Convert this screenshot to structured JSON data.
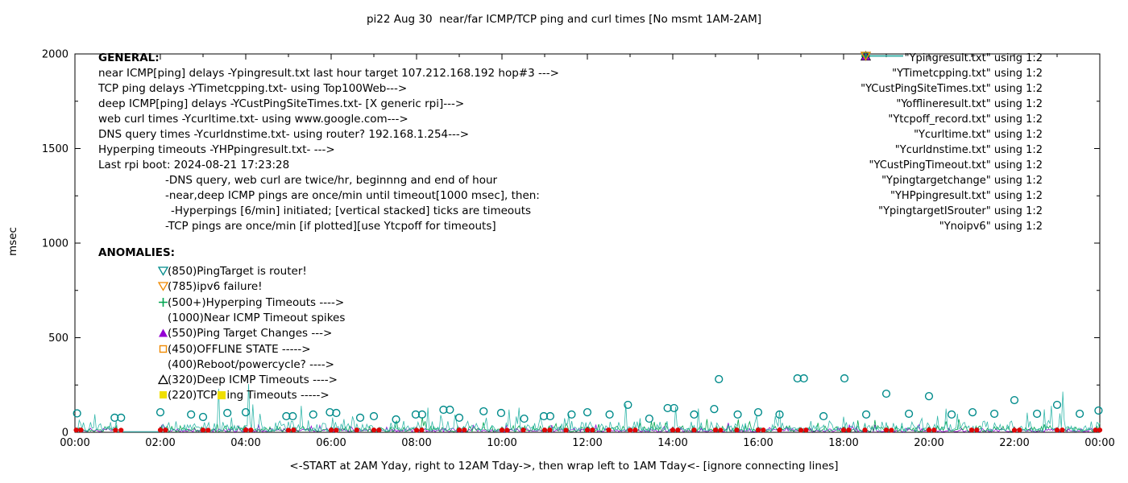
{
  "colors": {
    "purple": "#9400d3",
    "green": "#00a550",
    "lightteal": "#35b8ab",
    "teal": "#008b8b",
    "orange": "#ef8900",
    "yellow": "#efdf00",
    "red": "#dd0606",
    "black": "#000000"
  },
  "chart_data": {
    "type": "line+scatter",
    "title": "pi22 Aug 30  near/far ICMP/TCP ping and curl times [No msmt 1AM-2AM]",
    "xlabel": "<-START at 2AM Yday, right to 12AM Tday->, then wrap left to 1AM Tday<- [ignore connecting lines]",
    "ylabel": "msec",
    "ylim": [
      0,
      2000
    ],
    "xlim_hours": [
      0,
      24
    ],
    "yticks": [
      0,
      500,
      1000,
      1500,
      2000
    ],
    "xticks": [
      "00:00",
      "02:00",
      "04:00",
      "06:00",
      "08:00",
      "10:00",
      "12:00",
      "14:00",
      "16:00",
      "18:00",
      "20:00",
      "22:00",
      "00:00"
    ],
    "grid": false,
    "legend_position": "top-right",
    "no_measurement_window": {
      "start_hour": 1,
      "end_hour": 2,
      "note": "No msmt 1AM-2AM"
    },
    "line_series": [
      {
        "name": "Ypingresult.txt (near ICMP ping delays)",
        "color": "purple",
        "baseline_msec": [
          2,
          22
        ],
        "seed": 7,
        "spikes": []
      },
      {
        "name": "YTimetcpping.txt (TCP ping delays)",
        "color": "green",
        "baseline_msec": [
          3,
          35
        ],
        "seed": 13,
        "spikes": []
      },
      {
        "name": "YCustPingSiteTimes.txt (deep ICMP ping delays)",
        "color": "lightteal",
        "baseline_msec": [
          3,
          60
        ],
        "seed": 29,
        "spikes": [
          [
            3.35,
            230
          ],
          [
            4.08,
            255
          ],
          [
            5.3,
            140
          ],
          [
            8.25,
            130
          ],
          [
            10.15,
            120
          ],
          [
            12.9,
            150
          ],
          [
            14.05,
            135
          ],
          [
            20.4,
            125
          ],
          [
            22.85,
            140
          ],
          [
            23.12,
            215
          ]
        ]
      }
    ],
    "scatter_series": [
      {
        "name": "Ycurltime.txt (web curl times)",
        "marker": "circle-open",
        "color": "teal",
        "points": [
          [
            0.05,
            100
          ],
          [
            0.93,
            77
          ],
          [
            1.08,
            77
          ],
          [
            2.0,
            106
          ],
          [
            2.72,
            94
          ],
          [
            3.0,
            81
          ],
          [
            3.57,
            102
          ],
          [
            4.0,
            106
          ],
          [
            4.95,
            85
          ],
          [
            5.1,
            85
          ],
          [
            5.58,
            94
          ],
          [
            5.97,
            106
          ],
          [
            6.12,
            102
          ],
          [
            6.68,
            77
          ],
          [
            7.0,
            85
          ],
          [
            7.52,
            68
          ],
          [
            7.98,
            94
          ],
          [
            8.13,
            94
          ],
          [
            8.63,
            119
          ],
          [
            8.78,
            119
          ],
          [
            9.0,
            77
          ],
          [
            9.57,
            111
          ],
          [
            9.98,
            102
          ],
          [
            10.52,
            72
          ],
          [
            10.98,
            85
          ],
          [
            11.13,
            85
          ],
          [
            11.63,
            94
          ],
          [
            12.0,
            106
          ],
          [
            12.52,
            94
          ],
          [
            12.95,
            145
          ],
          [
            13.45,
            72
          ],
          [
            13.88,
            128
          ],
          [
            14.03,
            128
          ],
          [
            14.5,
            94
          ],
          [
            14.97,
            123
          ],
          [
            15.08,
            281
          ],
          [
            15.52,
            94
          ],
          [
            16.0,
            106
          ],
          [
            16.5,
            94
          ],
          [
            16.92,
            285
          ],
          [
            17.07,
            285
          ],
          [
            17.53,
            85
          ],
          [
            18.02,
            285
          ],
          [
            18.53,
            94
          ],
          [
            19.0,
            204
          ],
          [
            19.53,
            98
          ],
          [
            20.0,
            191
          ],
          [
            20.53,
            94
          ],
          [
            21.02,
            106
          ],
          [
            21.53,
            98
          ],
          [
            22.0,
            170
          ],
          [
            22.53,
            98
          ],
          [
            23.0,
            145
          ],
          [
            23.53,
            98
          ],
          [
            23.97,
            115
          ]
        ]
      },
      {
        "name": "Ycurldnstime.txt (DNS query times)",
        "marker": "circle-filled",
        "color": "red",
        "points": [
          [
            0.03,
            12
          ],
          [
            0.14,
            12
          ],
          [
            0.95,
            11
          ],
          [
            1.08,
            11
          ],
          [
            2.0,
            12
          ],
          [
            2.12,
            12
          ],
          [
            3.0,
            12
          ],
          [
            3.12,
            11
          ],
          [
            4.0,
            12
          ],
          [
            4.12,
            12
          ],
          [
            5.0,
            11
          ],
          [
            5.12,
            12
          ],
          [
            6.0,
            12
          ],
          [
            6.12,
            11
          ],
          [
            6.6,
            12
          ],
          [
            7.0,
            12
          ],
          [
            7.12,
            12
          ],
          [
            8.0,
            11
          ],
          [
            8.12,
            12
          ],
          [
            9.0,
            12
          ],
          [
            9.12,
            12
          ],
          [
            10.0,
            12
          ],
          [
            10.12,
            11
          ],
          [
            10.5,
            12
          ],
          [
            11.0,
            12
          ],
          [
            11.12,
            12
          ],
          [
            11.5,
            11
          ],
          [
            12.0,
            12
          ],
          [
            12.12,
            12
          ],
          [
            12.5,
            12
          ],
          [
            13.0,
            11
          ],
          [
            13.12,
            12
          ],
          [
            14.0,
            12
          ],
          [
            14.12,
            12
          ],
          [
            14.5,
            12
          ],
          [
            15.0,
            12
          ],
          [
            15.12,
            11
          ],
          [
            15.5,
            12
          ],
          [
            16.0,
            12
          ],
          [
            16.12,
            12
          ],
          [
            16.5,
            12
          ],
          [
            17.0,
            11
          ],
          [
            17.12,
            12
          ],
          [
            18.0,
            12
          ],
          [
            18.12,
            12
          ],
          [
            18.5,
            12
          ],
          [
            19.0,
            12
          ],
          [
            19.12,
            11
          ],
          [
            20.0,
            12
          ],
          [
            20.12,
            12
          ],
          [
            21.0,
            12
          ],
          [
            21.12,
            12
          ],
          [
            22.0,
            11
          ],
          [
            22.12,
            12
          ],
          [
            23.0,
            12
          ],
          [
            23.12,
            12
          ],
          [
            23.9,
            12
          ],
          [
            24.0,
            12
          ]
        ]
      }
    ]
  },
  "legend": [
    {
      "label": "\"Ypingresult.txt\" using 1:2",
      "marker": "line",
      "color": "purple"
    },
    {
      "label": "\"YTimetcpping.txt\" using 1:2",
      "marker": "line",
      "color": "green"
    },
    {
      "label": "\"YCustPingSiteTimes.txt\" using 1:2",
      "marker": "line",
      "color": "lightteal"
    },
    {
      "label": "\"Yofflineresult.txt\" using 1:2",
      "marker": "square-open",
      "color": "orange"
    },
    {
      "label": "\"Ytcpoff_record.txt\" using 1:2",
      "marker": "square-filled",
      "color": "yellow"
    },
    {
      "label": "\"Ycurltime.txt\" using 1:2",
      "marker": "circle-open",
      "color": "teal"
    },
    {
      "label": "\"Ycurldnstime.txt\" using 1:2",
      "marker": "circle-filled",
      "color": "red"
    },
    {
      "label": "\"YCustPingTimeout.txt\" using 1:2",
      "marker": "tri-up-open",
      "color": "black"
    },
    {
      "label": "\"Ypingtargetchange\" using 1:2",
      "marker": "tri-up-filled",
      "color": "purple"
    },
    {
      "label": "\"YHPpingresult.txt\" using 1:2",
      "marker": "plus",
      "color": "green"
    },
    {
      "label": "\"YpingtargetISrouter\" using 1:2",
      "marker": "tri-down-open",
      "color": "teal"
    },
    {
      "label": "\"Ynoipv6\" using 1:2",
      "marker": "tri-down-open",
      "color": "orange"
    }
  ],
  "general": {
    "heading": "GENERAL:",
    "lines": [
      {
        "indent": 0,
        "text": "near ICMP[ping] delays -Ypingresult.txt last hour target 107.212.168.192 hop#3 --->"
      },
      {
        "indent": 0,
        "text": "TCP ping delays -YTimetcpping.txt- using Top100Web--->"
      },
      {
        "indent": 0,
        "text": "deep ICMP[ping] delays -YCustPingSiteTimes.txt- [X generic rpi]--->"
      },
      {
        "indent": 0,
        "text": "web curl times -Ycurltime.txt- using www.google.com--->"
      },
      {
        "indent": 0,
        "text": "DNS query times -Ycurldnstime.txt- using router? 192.168.1.254--->"
      },
      {
        "indent": 0,
        "text": "Hyperping timeouts -YHPpingresult.txt- --->"
      },
      {
        "indent": 0,
        "text": "Last rpi boot: 2024-08-21 17:23:28"
      },
      {
        "indent": 1,
        "text": "-DNS query, web curl are twice/hr, beginnng and end of hour"
      },
      {
        "indent": 1,
        "text": "-near,deep ICMP pings are once/min until timeout[1000 msec], then:"
      },
      {
        "indent": 2,
        "text": "-Hyperpings [6/min] initiated; [vertical stacked] ticks are timeouts"
      },
      {
        "indent": 1,
        "text": "-TCP pings are once/min [if plotted][use Ytcpoff for timeouts]"
      }
    ]
  },
  "anomalies": {
    "heading": "ANOMALIES:",
    "rows": [
      {
        "marker": "tri-down-open",
        "color": "teal",
        "text": "(850)PingTarget is router!"
      },
      {
        "marker": "tri-down-open",
        "color": "orange",
        "text": "(785)ipv6 failure!"
      },
      {
        "marker": "plus",
        "color": "green",
        "text": "(500+)Hyperping Timeouts ---->"
      },
      {
        "marker": "none",
        "color": "black",
        "text": "(1000)Near ICMP Timeout spikes"
      },
      {
        "marker": "tri-up-filled",
        "color": "purple",
        "text": "(550)Ping Target Changes --->"
      },
      {
        "marker": "square-open",
        "color": "orange",
        "text": "(450)OFFLINE STATE ----->"
      },
      {
        "marker": "none",
        "color": "black",
        "text": "(400)Reboot/powercycle? ---->"
      },
      {
        "marker": "tri-up-open",
        "color": "black",
        "text": "(320)Deep ICMP Timeouts ---->"
      },
      {
        "marker": "square-filled",
        "color": "yellow",
        "text": "(220)TCP",
        "inline_marker": "square-filled",
        "inline_color": "yellow",
        "text2": "ing Timeouts ----->"
      }
    ]
  }
}
